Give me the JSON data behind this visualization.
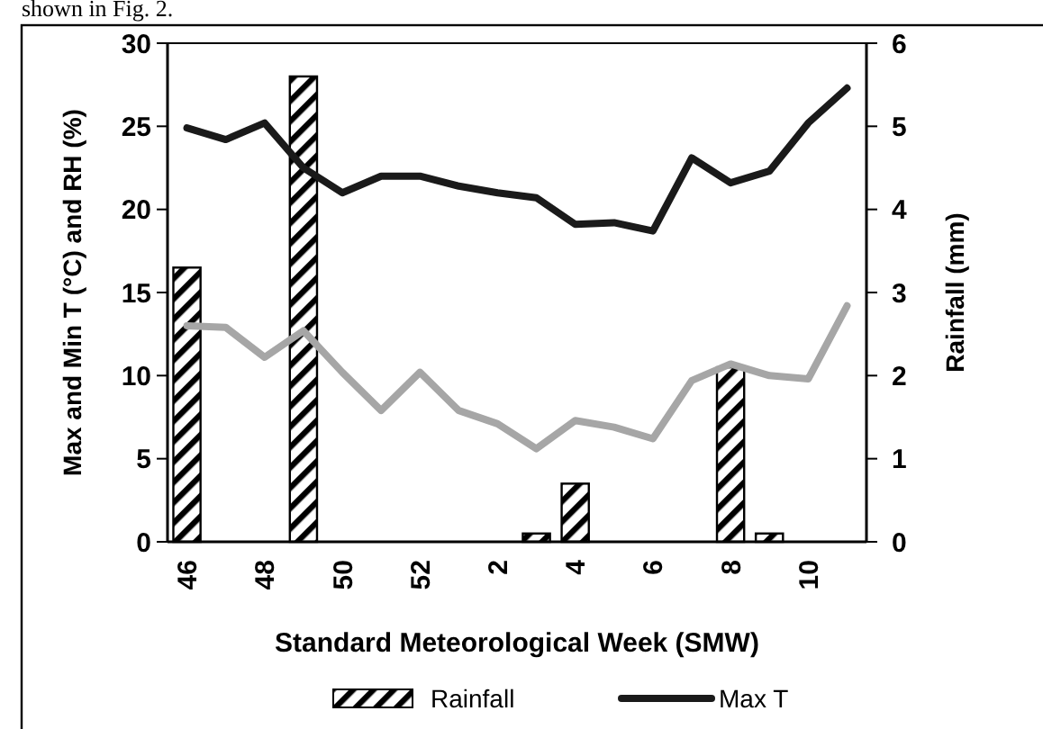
{
  "chart_data": {
    "type": "bar",
    "xlabel": "Standard Meteorological Week (SMW)",
    "ylabel": "Max and Min T (°C) and RH (%)",
    "y2label": "Rainfall (mm)",
    "annotations": [
      "shown in Fig. 2."
    ],
    "categories": [
      "46",
      null,
      "48",
      null,
      "50",
      null,
      "52",
      null,
      "2",
      null,
      "4",
      null,
      "6",
      null,
      "8",
      null,
      "10",
      null
    ],
    "series": [
      {
        "name": "Rainfall",
        "axis": "y2",
        "color": "#000000",
        "values": [
          3.3,
          0,
          0,
          5.6,
          0,
          0,
          0,
          0,
          0,
          0.1,
          0.7,
          0,
          0,
          0,
          2.1,
          0.1,
          0,
          0
        ]
      },
      {
        "name": "Max T",
        "type": "line",
        "color": "#1a1a1a",
        "values": [
          24.9,
          24.2,
          25.2,
          22.5,
          21.0,
          22.0,
          22.0,
          21.4,
          21.0,
          20.7,
          19.1,
          19.2,
          18.7,
          23.1,
          21.6,
          22.3,
          25.2,
          27.3
        ]
      },
      {
        "type": "line",
        "color": "#a6a6a6",
        "values": [
          13.0,
          12.9,
          11.1,
          12.7,
          10.2,
          7.9,
          10.2,
          7.9,
          7.1,
          5.6,
          7.3,
          6.9,
          6.2,
          9.7,
          10.7,
          10.0,
          9.8,
          14.2
        ]
      }
    ],
    "ylim": [
      0,
      30
    ],
    "yticks": [
      0,
      5,
      10,
      15,
      20,
      25,
      30
    ],
    "y2lim": [
      0,
      6
    ],
    "y2ticks": [
      0,
      1,
      2,
      3,
      4,
      5,
      6
    ],
    "legend": "bottom",
    "grid": false,
    "marker": "none",
    "line_style": "solid"
  }
}
